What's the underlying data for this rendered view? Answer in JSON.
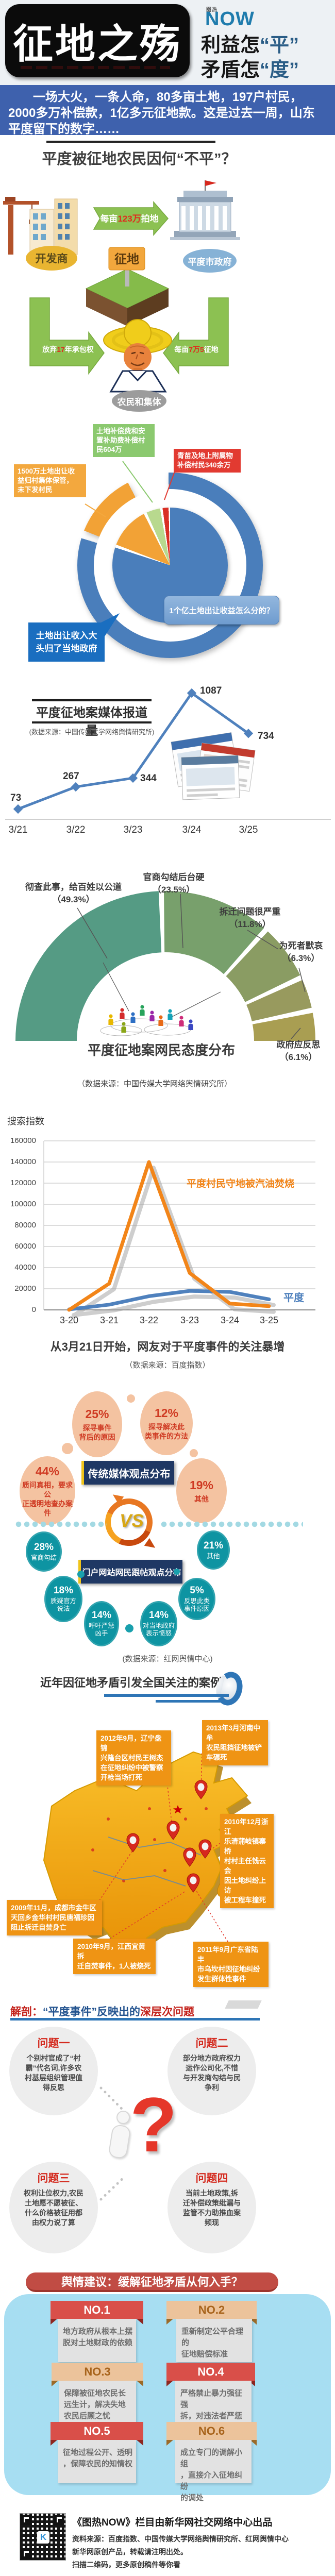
{
  "header": {
    "logo_top": "图热",
    "logo_main": "NOW",
    "title": "征地之殇",
    "sub1_black": "利益怎",
    "sub1_blue": "“平”",
    "sub2_black": "矛盾怎",
    "sub2_blue": "“度”"
  },
  "intro": {
    "text": "一场大火，一条人命，80多亩土地，197户村民，2000多万补偿款，1亿多元征地款。这是过去一周，山东平度留下的数字……"
  },
  "s1": {
    "title": "平度被征地农民因何“不平”？",
    "flow": {
      "developer": "开发商",
      "government": "平度市政府",
      "farmers": "农民和集体",
      "sign": "征地",
      "top_pre": "每亩",
      "top_num": "123万",
      "top_post": "拍地",
      "left_pre": "放弃",
      "left_num": "17",
      "left_post": "年承包权",
      "right_pre": "每亩",
      "right_num": "7万5",
      "right_post": "征地"
    },
    "pie": {
      "green": "土地补偿费和安\n置补助费补偿村\n民604万",
      "red": "青苗及地上附属物\n补偿村民340余万",
      "orange": "1500万土地出让收\n益归村集体保管，\n未下发村民",
      "blue": "土地出让收入大\n头归了当地政府",
      "question": "1个亿土地出让收益怎么分的？"
    }
  },
  "media": {
    "title": "平度征地案媒体报道量",
    "source": "(数据来源：中国传媒大学网络舆情研究所)"
  },
  "fan": {
    "title": "平度征地案网民态度分布",
    "source": "（数据来源：中国传媒大学网络舆情研究所）",
    "labels": [
      "彻查此事，给百姓以公道\n（49.3%）",
      "官商勾结后台硬\n（23.5%）",
      "拆迁问题很严重\n（11.8%）",
      "为死者默哀\n（6.3%）",
      "政府应反思\n（6.1%）"
    ]
  },
  "search": {
    "ylabel": "搜索指数",
    "orange_label": "平度村民守地被汽油焚烧",
    "blue_label": "平度",
    "caption": "从3月21日开始，网友对于平度事件的关注暴增",
    "source": "（数据来源：百度指数）"
  },
  "vs": {
    "banner_top": "传统媒体观点分布",
    "banner_bottom": "门户网站网民跟帖观点分布",
    "vs": "VS",
    "source": "(数据来源：红网舆情中心)",
    "trad": [
      {
        "pct": "25%",
        "label": "探寻事件\n背后的原因"
      },
      {
        "pct": "12%",
        "label": "探寻解决此\n类事件的方法"
      },
      {
        "pct": "44%",
        "label": "质问真相，要求公\n正透明地查办案件"
      },
      {
        "pct": "19%",
        "label": "其他"
      }
    ],
    "portal": [
      {
        "pct": "28%",
        "label": "官商勾结"
      },
      {
        "pct": "18%",
        "label": "质疑官方\n说法"
      },
      {
        "pct": "14%",
        "label": "呼吁严惩\n凶手"
      },
      {
        "pct": "14%",
        "label": "对当地政府\n表示愤怒"
      },
      {
        "pct": "5%",
        "label": "反思此类\n事件原因"
      },
      {
        "pct": "21%",
        "label": "其他"
      }
    ]
  },
  "cases": {
    "title": "近年因征地矛盾引发全国关注的案例",
    "items": [
      "2012年9月，辽宁盘锦\n兴隆台区村民王树杰\n在征地纠纷中被警察\n开枪当场打死",
      "2013年3月河南中牟\n农民阻挡征地被铲\n车碾死",
      "2010年12月浙江\n乐清蒲岐镇寨桥\n村村主任钱云会\n因土地纠纷上访\n被工程车撞死",
      "2009年11月，成都市金牛区\n天回乡金华村村民唐福珍因\n阻止拆迁自焚身亡",
      "2010年9月，江西宜黄拆\n迁自焚事件，1人被烧死",
      "2011年9月广东省陆丰\n市乌坎村因征地纠纷\n发生群体性事件"
    ]
  },
  "analysis": {
    "t_red1": "解剖：",
    "t_blue": "“平度事件”反映出的",
    "t_red2": "深层次问题",
    "problems": [
      {
        "t": "问题一",
        "x": "个别村官成了“村\n霸”代名词,许多农\n村基层组织管理值\n得反思"
      },
      {
        "t": "问题二",
        "x": "部分地方政府权力\n运作公司化,不惜\n与开发商勾结与民\n争利"
      },
      {
        "t": "问题三",
        "x": "权利让位权力,农民\n土地愿不愿被征、\n什么价格被征用都\n由权力说了算"
      },
      {
        "t": "问题四",
        "x": "当前土地政策,拆\n迁补偿政策纰漏与\n监管不力助推血案\n频现"
      }
    ]
  },
  "sugg": {
    "banner": "舆情建议：缓解征地矛盾从何入手？",
    "items": [
      {
        "no": "NO.1",
        "x": "地方政府从根本上摆\n脱对土地财政的依赖"
      },
      {
        "no": "NO.2",
        "x": "重新制定公平合理的\n征地赔偿标准"
      },
      {
        "no": "NO.3",
        "x": "保障被征地农民长\n远生计，解决失地\n农民后顾之忧"
      },
      {
        "no": "NO.4",
        "x": "严格禁止暴力强征强\n拆，对违法者严惩不\n贷"
      },
      {
        "no": "NO.5",
        "x": "征地过程公开、透明\n，保障农民的知情权"
      },
      {
        "no": "NO.6",
        "x": "成立专门的调解小组\n，直接介入征地纠纷\n的调处"
      }
    ]
  },
  "footer": {
    "l1": "《图热NOW》栏目由新华网社交网络中心出品",
    "l2": "资料来源：百度指数、中国传媒大学网络舆情研究所、红网舆情中心",
    "l3": "新华网原创产品，转载请注明出处。",
    "l4": "扫描二维码，更多原创稿件等你看"
  },
  "chart_data": [
    {
      "type": "pie",
      "title": "1个亿土地出让收益怎么分的？",
      "total": "1亿",
      "slices": [
        {
          "label": "土地出让收入大头归了当地政府",
          "visual_pct": 84,
          "color": "#4a7ebb"
        },
        {
          "label": "1500万土地出让收益归村集体保管，未下发村民",
          "amount": "1500万",
          "visual_pct": 9,
          "color": "#f2a236"
        },
        {
          "label": "土地补偿费和安置补助费补偿村民",
          "amount": "604万",
          "visual_pct": 4.5,
          "color": "#b8d98e"
        },
        {
          "label": "青苗及地上附属物补偿村民",
          "amount": "340余万",
          "visual_pct": 2.5,
          "color": "#d93025"
        }
      ]
    },
    {
      "type": "line",
      "title": "平度征地案媒体报道量",
      "x": [
        "3/21",
        "3/22",
        "3/23",
        "3/24",
        "3/25"
      ],
      "values": [
        73,
        267,
        344,
        1087,
        734
      ],
      "color": "#4f81bd",
      "source": "中国传媒大学网络舆情研究所"
    },
    {
      "type": "pie",
      "layout": "半圆扇形图",
      "title": "平度征地案网民态度分布",
      "categories": [
        "彻查此事，给百姓以公道",
        "官商勾结后台硬",
        "拆迁问题很严重",
        "为死者默哀",
        "政府应反思"
      ],
      "values": [
        49.3,
        23.5,
        11.8,
        6.3,
        6.1
      ],
      "unit": "%",
      "source": "中国传媒大学网络舆情研究所"
    },
    {
      "type": "line",
      "title": "搜索指数",
      "x": [
        "3-20",
        "3-21",
        "3-22",
        "3-23",
        "3-24",
        "3-25"
      ],
      "yticks": [
        "160000",
        "140000",
        "120000",
        "100000",
        "80000",
        "60000",
        "40000",
        "20000",
        "0"
      ],
      "ylim": [
        0,
        160000
      ],
      "series": [
        {
          "name": "平度村民守地被汽油焚烧",
          "color": "#f28519",
          "values": [
            0,
            25000,
            140000,
            35000,
            6000,
            3500
          ]
        },
        {
          "name": "平度",
          "color": "#4f81bd",
          "values": [
            500,
            5000,
            13000,
            18000,
            17000,
            10000
          ]
        }
      ],
      "source": "百度指数"
    },
    {
      "type": "pie",
      "title": "传统媒体观点分布",
      "categories": [
        "质问真相，要求公正透明地查办案件",
        "探寻事件背后的原因",
        "探寻解决此类事件的方法",
        "其他"
      ],
      "values": [
        44,
        25,
        12,
        19
      ],
      "unit": "%"
    },
    {
      "type": "pie",
      "title": "门户网站网民跟帖观点分布",
      "categories": [
        "官商勾结",
        "质疑官方说法",
        "呼吁严惩凶手",
        "对当地政府表示愤怒",
        "反思此类事件原因",
        "其他"
      ],
      "values": [
        28,
        18,
        14,
        14,
        5,
        21
      ],
      "unit": "%",
      "source": "红网舆情中心"
    }
  ]
}
